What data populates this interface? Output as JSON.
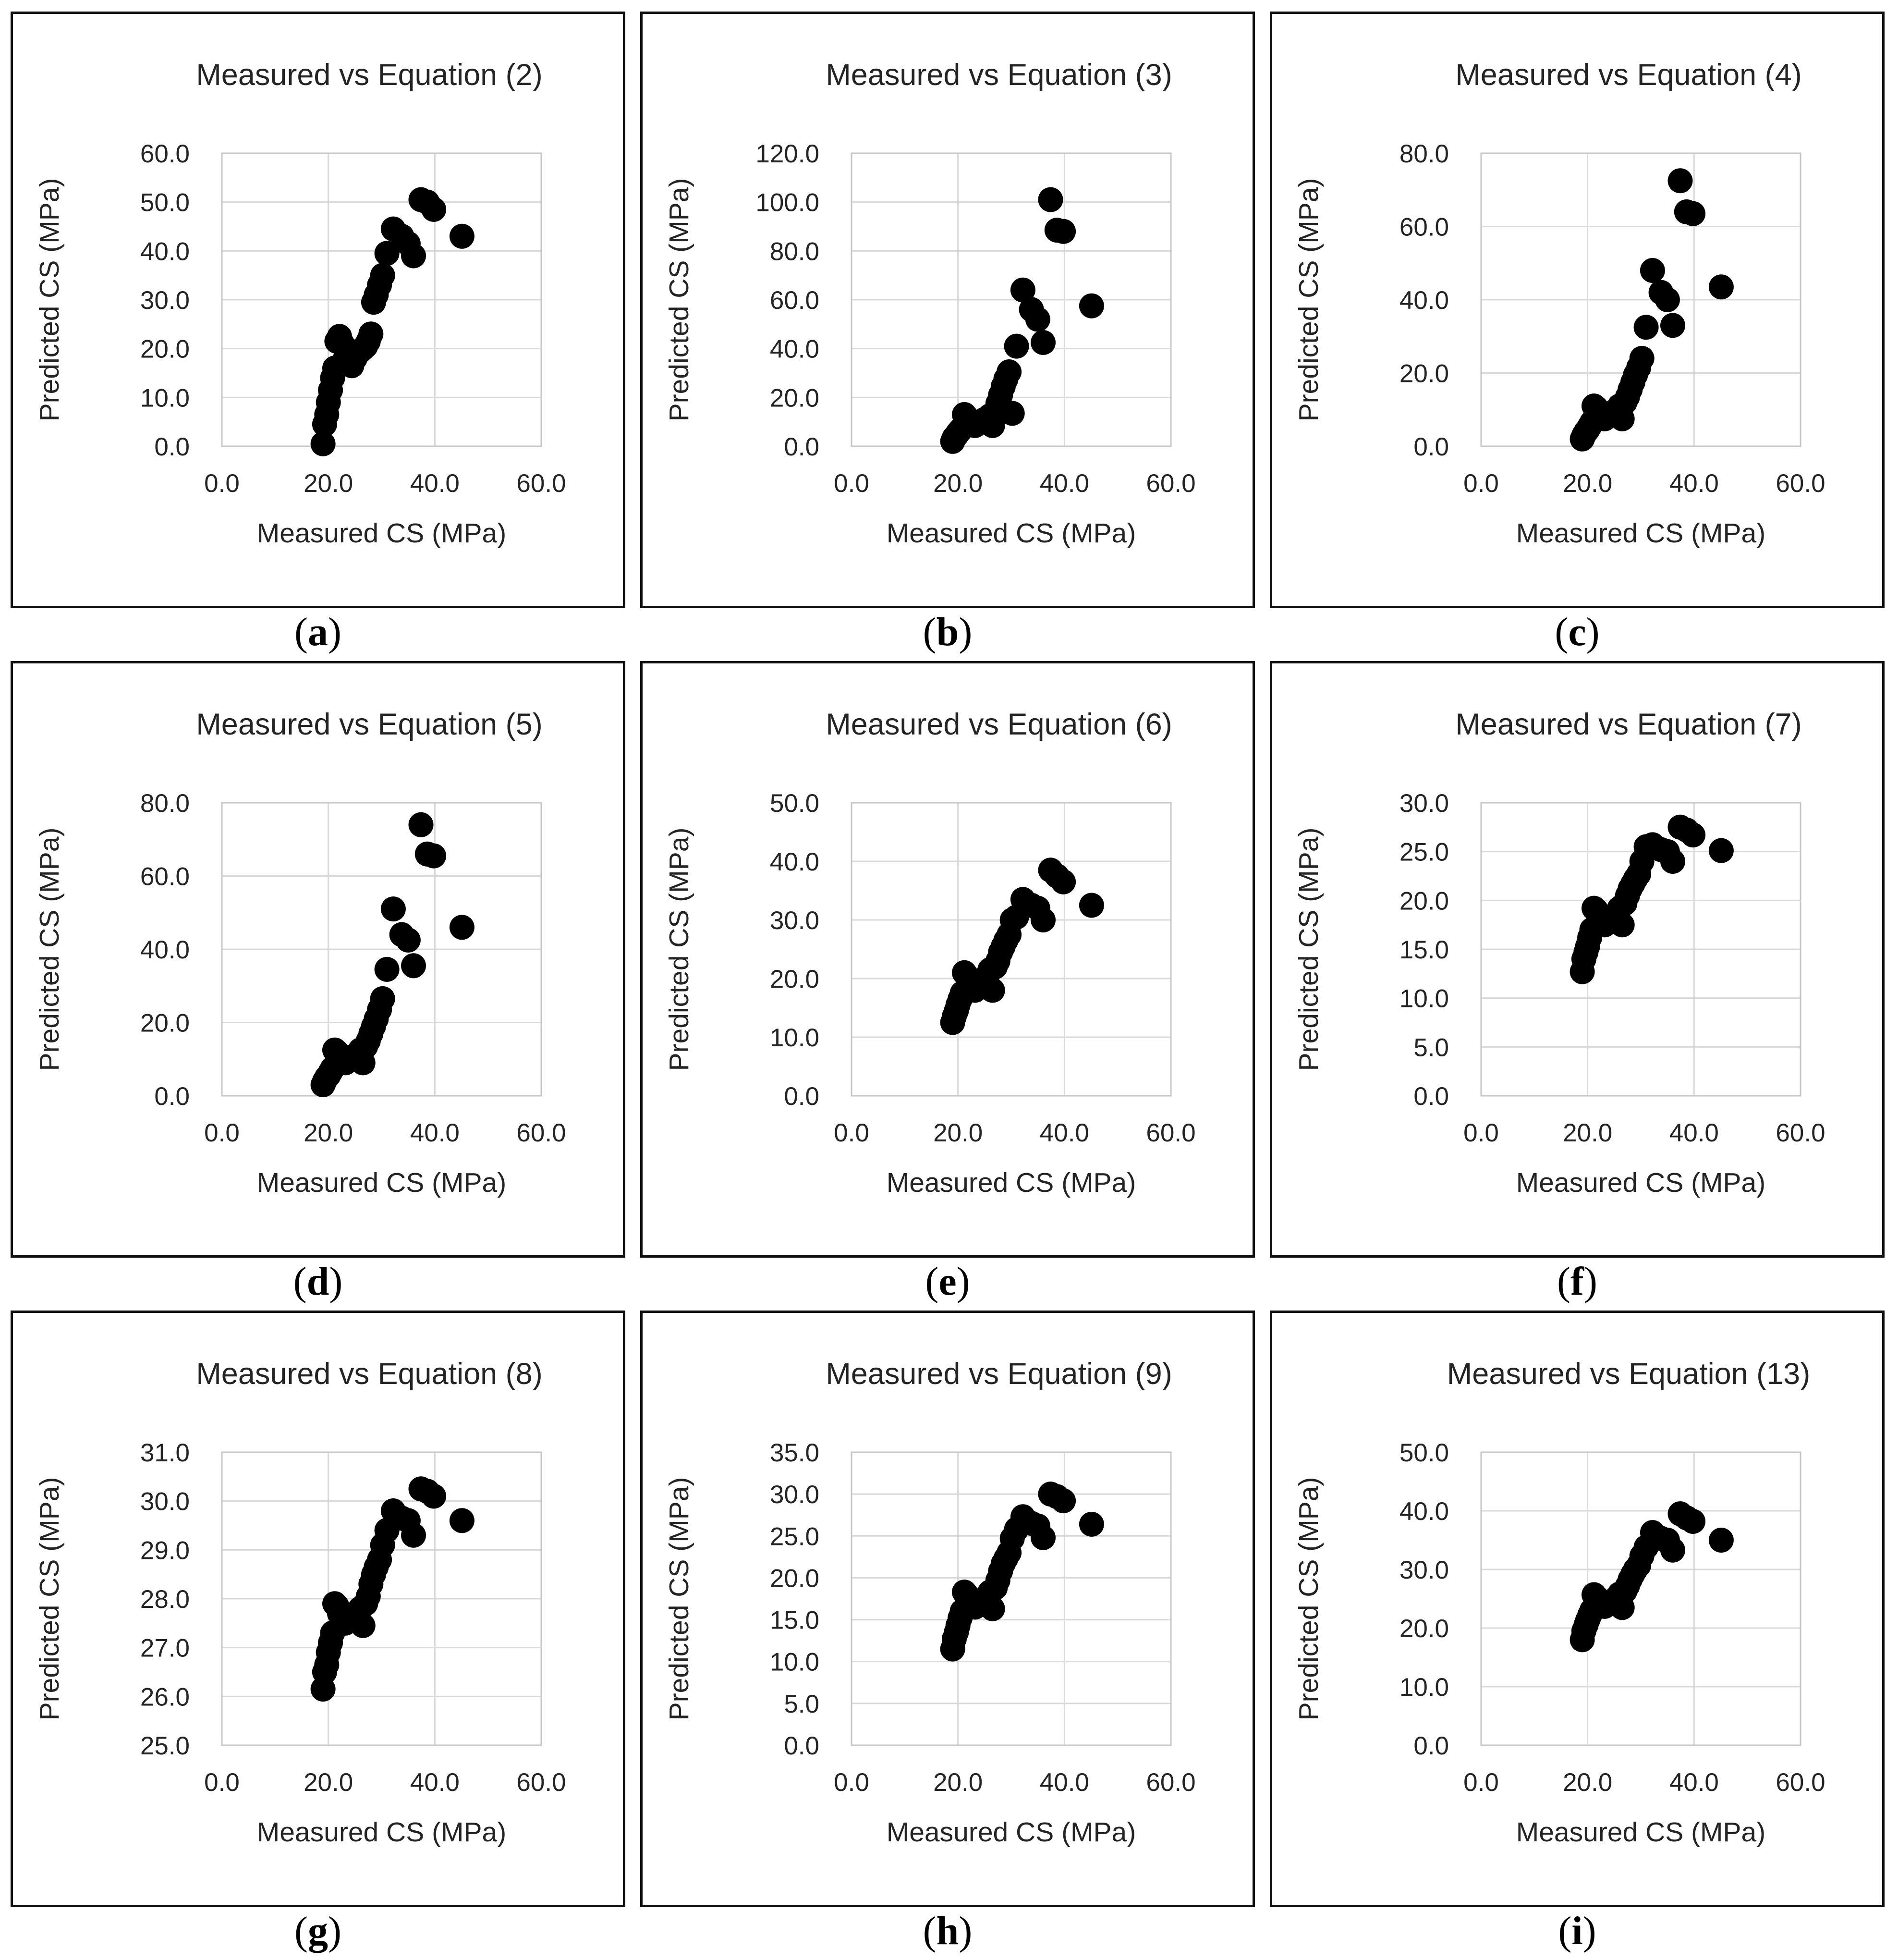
{
  "figure": {
    "shared_x_axis_label": "Measured CS (MPa)",
    "shared_y_axis_label": "Predicted CS (MPa)",
    "marker_color": "#000000",
    "gridline_color": "#d9d9d9",
    "plot_border_color": "#c6c6c6",
    "panel_border_color": "#101010"
  },
  "chart_data": [
    {
      "type": "scatter",
      "panel_letter": "a",
      "caption": "(a)",
      "title": "Measured vs Equation (2)",
      "xlabel": "Measured CS (MPa)",
      "ylabel": "Predicted CS (MPa)",
      "xlim": [
        0,
        60
      ],
      "x_tick_step": 20,
      "ylim": [
        0,
        60
      ],
      "y_tick_step": 10,
      "grid": true,
      "marker_color": "#000000",
      "points": [
        [
          19.0,
          0.5
        ],
        [
          19.3,
          4.5
        ],
        [
          19.7,
          6.5
        ],
        [
          20.0,
          9.0
        ],
        [
          20.4,
          11.5
        ],
        [
          20.8,
          14.0
        ],
        [
          21.2,
          16.0
        ],
        [
          21.6,
          21.5
        ],
        [
          22.1,
          22.5
        ],
        [
          22.6,
          21.0
        ],
        [
          23.2,
          18.0
        ],
        [
          23.8,
          17.0
        ],
        [
          24.4,
          16.5
        ],
        [
          25.0,
          18.0
        ],
        [
          25.5,
          19.0
        ],
        [
          26.0,
          19.5
        ],
        [
          26.5,
          20.0
        ],
        [
          27.0,
          20.5
        ],
        [
          27.5,
          21.5
        ],
        [
          28.0,
          23.0
        ],
        [
          28.5,
          29.5
        ],
        [
          29.0,
          31.0
        ],
        [
          29.6,
          33.0
        ],
        [
          30.2,
          35.0
        ],
        [
          31.0,
          39.5
        ],
        [
          32.2,
          44.5
        ],
        [
          33.8,
          43.0
        ],
        [
          35.0,
          41.5
        ],
        [
          36.0,
          39.0
        ],
        [
          37.4,
          50.5
        ],
        [
          38.6,
          50.0
        ],
        [
          39.8,
          48.5
        ],
        [
          45.1,
          43.0
        ]
      ]
    },
    {
      "type": "scatter",
      "panel_letter": "b",
      "caption": "(b)",
      "title": "Measured vs Equation (3)",
      "xlabel": "Measured CS (MPa)",
      "ylabel": "Predicted CS (MPa)",
      "xlim": [
        0,
        60
      ],
      "x_tick_step": 20,
      "ylim": [
        0,
        120
      ],
      "y_tick_step": 20,
      "grid": true,
      "marker_color": "#000000",
      "points": [
        [
          19.0,
          2.0
        ],
        [
          19.3,
          3.5
        ],
        [
          19.7,
          4.5
        ],
        [
          20.0,
          5.5
        ],
        [
          20.4,
          6.5
        ],
        [
          20.8,
          7.5
        ],
        [
          21.2,
          13.0
        ],
        [
          21.6,
          12.0
        ],
        [
          22.1,
          10.5
        ],
        [
          22.6,
          9.0
        ],
        [
          23.2,
          8.5
        ],
        [
          23.8,
          9.5
        ],
        [
          24.4,
          10.0
        ],
        [
          25.0,
          11.0
        ],
        [
          25.5,
          11.5
        ],
        [
          26.0,
          12.5
        ],
        [
          26.5,
          8.5
        ],
        [
          27.0,
          14.0
        ],
        [
          27.5,
          17.5
        ],
        [
          28.0,
          21.0
        ],
        [
          28.5,
          24.5
        ],
        [
          29.0,
          27.5
        ],
        [
          29.6,
          30.5
        ],
        [
          30.2,
          13.5
        ],
        [
          31.0,
          41.0
        ],
        [
          32.2,
          64.0
        ],
        [
          33.8,
          56.0
        ],
        [
          35.0,
          52.0
        ],
        [
          36.0,
          42.5
        ],
        [
          37.4,
          101.0
        ],
        [
          38.6,
          88.5
        ],
        [
          39.8,
          88.0
        ],
        [
          45.1,
          57.5
        ]
      ]
    },
    {
      "type": "scatter",
      "panel_letter": "c",
      "caption": "(c)",
      "title": "Measured vs Equation (4)",
      "xlabel": "Measured CS (MPa)",
      "ylabel": "Predicted CS (MPa)",
      "xlim": [
        0,
        60
      ],
      "x_tick_step": 20,
      "ylim": [
        0,
        80
      ],
      "y_tick_step": 20,
      "grid": true,
      "marker_color": "#000000",
      "points": [
        [
          19.0,
          2.0
        ],
        [
          19.3,
          3.0
        ],
        [
          19.7,
          4.0
        ],
        [
          20.0,
          4.5
        ],
        [
          20.4,
          5.5
        ],
        [
          20.8,
          6.5
        ],
        [
          21.2,
          11.0
        ],
        [
          21.6,
          10.5
        ],
        [
          22.1,
          9.0
        ],
        [
          22.6,
          8.0
        ],
        [
          23.2,
          7.5
        ],
        [
          23.8,
          8.5
        ],
        [
          24.4,
          9.0
        ],
        [
          25.0,
          9.5
        ],
        [
          25.5,
          10.0
        ],
        [
          26.0,
          11.0
        ],
        [
          26.5,
          7.5
        ],
        [
          27.0,
          12.0
        ],
        [
          27.5,
          13.5
        ],
        [
          28.0,
          15.5
        ],
        [
          28.5,
          17.5
        ],
        [
          29.0,
          19.5
        ],
        [
          29.6,
          21.5
        ],
        [
          30.2,
          24.0
        ],
        [
          31.0,
          32.5
        ],
        [
          32.2,
          48.0
        ],
        [
          33.8,
          42.0
        ],
        [
          35.0,
          40.0
        ],
        [
          36.0,
          33.0
        ],
        [
          37.4,
          72.5
        ],
        [
          38.6,
          64.0
        ],
        [
          39.8,
          63.5
        ],
        [
          45.1,
          43.5
        ]
      ]
    },
    {
      "type": "scatter",
      "panel_letter": "d",
      "caption": "(d)",
      "title": "Measured vs Equation (5)",
      "xlabel": "Measured CS (MPa)",
      "ylabel": "Predicted CS (MPa)",
      "xlim": [
        0,
        60
      ],
      "x_tick_step": 20,
      "ylim": [
        0,
        80
      ],
      "y_tick_step": 20,
      "grid": true,
      "marker_color": "#000000",
      "points": [
        [
          19.0,
          3.0
        ],
        [
          19.3,
          4.0
        ],
        [
          19.7,
          5.0
        ],
        [
          20.0,
          5.5
        ],
        [
          20.4,
          6.5
        ],
        [
          20.8,
          7.5
        ],
        [
          21.2,
          12.5
        ],
        [
          21.6,
          12.0
        ],
        [
          22.1,
          10.5
        ],
        [
          22.6,
          9.5
        ],
        [
          23.2,
          9.0
        ],
        [
          23.8,
          10.0
        ],
        [
          24.4,
          10.5
        ],
        [
          25.0,
          11.0
        ],
        [
          25.5,
          11.5
        ],
        [
          26.0,
          12.5
        ],
        [
          26.5,
          9.0
        ],
        [
          27.0,
          13.5
        ],
        [
          27.5,
          15.0
        ],
        [
          28.0,
          17.0
        ],
        [
          28.5,
          19.0
        ],
        [
          29.0,
          21.0
        ],
        [
          29.6,
          23.5
        ],
        [
          30.2,
          26.5
        ],
        [
          31.0,
          34.5
        ],
        [
          32.2,
          51.0
        ],
        [
          33.8,
          44.0
        ],
        [
          35.0,
          42.5
        ],
        [
          36.0,
          35.5
        ],
        [
          37.4,
          74.0
        ],
        [
          38.6,
          66.0
        ],
        [
          39.8,
          65.5
        ],
        [
          45.1,
          46.0
        ]
      ]
    },
    {
      "type": "scatter",
      "panel_letter": "e",
      "caption": "(e)",
      "title": "Measured vs Equation (6)",
      "xlabel": "Measured CS (MPa)",
      "ylabel": "Predicted CS (MPa)",
      "xlim": [
        0,
        60
      ],
      "x_tick_step": 20,
      "ylim": [
        0,
        50
      ],
      "y_tick_step": 10,
      "grid": true,
      "marker_color": "#000000",
      "points": [
        [
          19.0,
          12.5
        ],
        [
          19.3,
          13.5
        ],
        [
          19.7,
          14.5
        ],
        [
          20.0,
          15.5
        ],
        [
          20.4,
          16.5
        ],
        [
          20.8,
          17.5
        ],
        [
          21.2,
          21.0
        ],
        [
          21.6,
          20.5
        ],
        [
          22.1,
          19.5
        ],
        [
          22.6,
          18.5
        ],
        [
          23.2,
          18.0
        ],
        [
          23.8,
          19.0
        ],
        [
          24.4,
          19.5
        ],
        [
          25.0,
          20.0
        ],
        [
          25.5,
          20.5
        ],
        [
          26.0,
          21.5
        ],
        [
          26.5,
          18.0
        ],
        [
          27.0,
          22.0
        ],
        [
          27.5,
          23.0
        ],
        [
          28.0,
          24.5
        ],
        [
          28.5,
          25.5
        ],
        [
          29.0,
          26.5
        ],
        [
          29.6,
          27.5
        ],
        [
          30.2,
          30.0
        ],
        [
          31.0,
          30.5
        ],
        [
          32.2,
          33.5
        ],
        [
          33.8,
          32.5
        ],
        [
          35.0,
          32.0
        ],
        [
          36.0,
          30.0
        ],
        [
          37.4,
          38.5
        ],
        [
          38.6,
          37.5
        ],
        [
          39.8,
          36.5
        ],
        [
          45.1,
          32.5
        ]
      ]
    },
    {
      "type": "scatter",
      "panel_letter": "f",
      "caption": "(f)",
      "title": "Measured vs Equation (7)",
      "xlabel": "Measured CS (MPa)",
      "ylabel": "Predicted CS (MPa)",
      "xlim": [
        0,
        60
      ],
      "x_tick_step": 20,
      "ylim": [
        0,
        30
      ],
      "y_tick_step": 5,
      "grid": true,
      "marker_color": "#000000",
      "points": [
        [
          19.0,
          12.7
        ],
        [
          19.3,
          14.0
        ],
        [
          19.7,
          14.7
        ],
        [
          20.0,
          15.3
        ],
        [
          20.4,
          16.2
        ],
        [
          20.8,
          17.0
        ],
        [
          21.2,
          19.2
        ],
        [
          21.6,
          19.0
        ],
        [
          22.1,
          18.2
        ],
        [
          22.6,
          17.7
        ],
        [
          23.2,
          17.5
        ],
        [
          23.8,
          18.0
        ],
        [
          24.4,
          18.2
        ],
        [
          25.0,
          18.5
        ],
        [
          25.5,
          18.7
        ],
        [
          26.0,
          19.2
        ],
        [
          26.5,
          17.5
        ],
        [
          27.0,
          19.7
        ],
        [
          27.5,
          20.5
        ],
        [
          28.0,
          21.2
        ],
        [
          28.5,
          21.7
        ],
        [
          29.0,
          22.2
        ],
        [
          29.6,
          22.7
        ],
        [
          30.2,
          24.0
        ],
        [
          31.0,
          25.5
        ],
        [
          32.2,
          25.7
        ],
        [
          33.8,
          25.2
        ],
        [
          35.0,
          25.0
        ],
        [
          36.0,
          24.0
        ],
        [
          37.4,
          27.5
        ],
        [
          38.6,
          27.2
        ],
        [
          39.8,
          26.7
        ],
        [
          45.1,
          25.1
        ]
      ]
    },
    {
      "type": "scatter",
      "panel_letter": "g",
      "caption": "(g)",
      "title": "Measured vs Equation (8)",
      "xlabel": "Measured CS (MPa)",
      "ylabel": "Predicted CS (MPa)",
      "xlim": [
        0,
        60
      ],
      "x_tick_step": 20,
      "ylim": [
        25,
        31
      ],
      "y_tick_step": 1,
      "grid": true,
      "marker_color": "#000000",
      "points": [
        [
          19.0,
          26.15
        ],
        [
          19.3,
          26.5
        ],
        [
          19.7,
          26.65
        ],
        [
          20.0,
          26.9
        ],
        [
          20.4,
          27.1
        ],
        [
          20.8,
          27.3
        ],
        [
          21.2,
          27.9
        ],
        [
          21.6,
          27.85
        ],
        [
          22.1,
          27.7
        ],
        [
          22.6,
          27.6
        ],
        [
          23.2,
          27.5
        ],
        [
          23.8,
          27.55
        ],
        [
          24.4,
          27.6
        ],
        [
          25.0,
          27.65
        ],
        [
          25.5,
          27.7
        ],
        [
          26.0,
          27.8
        ],
        [
          26.5,
          27.45
        ],
        [
          27.0,
          27.9
        ],
        [
          27.5,
          28.05
        ],
        [
          28.0,
          28.3
        ],
        [
          28.5,
          28.5
        ],
        [
          29.0,
          28.65
        ],
        [
          29.6,
          28.8
        ],
        [
          30.2,
          29.1
        ],
        [
          31.0,
          29.4
        ],
        [
          32.2,
          29.8
        ],
        [
          33.8,
          29.65
        ],
        [
          35.0,
          29.6
        ],
        [
          36.0,
          29.3
        ],
        [
          37.4,
          30.25
        ],
        [
          38.6,
          30.2
        ],
        [
          39.8,
          30.1
        ],
        [
          45.1,
          29.6
        ]
      ]
    },
    {
      "type": "scatter",
      "panel_letter": "h",
      "caption": "(h)",
      "title": "Measured vs Equation (9)",
      "xlabel": "Measured CS (MPa)",
      "ylabel": "Predicted CS (MPa)",
      "xlim": [
        0,
        60
      ],
      "x_tick_step": 20,
      "ylim": [
        0,
        35
      ],
      "y_tick_step": 5,
      "grid": true,
      "marker_color": "#000000",
      "points": [
        [
          19.0,
          11.5
        ],
        [
          19.3,
          12.7
        ],
        [
          19.7,
          13.5
        ],
        [
          20.0,
          14.3
        ],
        [
          20.4,
          15.2
        ],
        [
          20.8,
          16.0
        ],
        [
          21.2,
          18.3
        ],
        [
          21.6,
          18.0
        ],
        [
          22.1,
          17.3
        ],
        [
          22.6,
          16.8
        ],
        [
          23.2,
          16.5
        ],
        [
          23.8,
          17.0
        ],
        [
          24.4,
          17.2
        ],
        [
          25.0,
          17.5
        ],
        [
          25.5,
          17.8
        ],
        [
          26.0,
          18.3
        ],
        [
          26.5,
          16.3
        ],
        [
          27.0,
          18.8
        ],
        [
          27.5,
          19.7
        ],
        [
          28.0,
          20.8
        ],
        [
          28.5,
          21.7
        ],
        [
          29.0,
          22.3
        ],
        [
          29.6,
          23.0
        ],
        [
          30.2,
          24.7
        ],
        [
          31.0,
          25.8
        ],
        [
          32.2,
          27.3
        ],
        [
          33.8,
          26.5
        ],
        [
          35.0,
          26.2
        ],
        [
          36.0,
          24.8
        ],
        [
          37.4,
          30.0
        ],
        [
          38.6,
          29.7
        ],
        [
          39.8,
          29.2
        ],
        [
          45.1,
          26.4
        ]
      ]
    },
    {
      "type": "scatter",
      "panel_letter": "i",
      "caption": "(i)",
      "title": "Measured vs Equation (13)",
      "xlabel": "Measured CS (MPa)",
      "ylabel": "Predicted CS (MPa)",
      "xlim": [
        0,
        60
      ],
      "x_tick_step": 20,
      "ylim": [
        0,
        50
      ],
      "y_tick_step": 10,
      "grid": true,
      "marker_color": "#000000",
      "points": [
        [
          19.0,
          18.0
        ],
        [
          19.3,
          19.5
        ],
        [
          19.7,
          20.5
        ],
        [
          20.0,
          21.3
        ],
        [
          20.4,
          22.2
        ],
        [
          20.8,
          23.0
        ],
        [
          21.2,
          25.7
        ],
        [
          21.6,
          25.3
        ],
        [
          22.1,
          24.5
        ],
        [
          22.6,
          24.0
        ],
        [
          23.2,
          23.7
        ],
        [
          23.8,
          24.2
        ],
        [
          24.4,
          24.5
        ],
        [
          25.0,
          24.8
        ],
        [
          25.5,
          25.2
        ],
        [
          26.0,
          25.8
        ],
        [
          26.5,
          23.5
        ],
        [
          27.0,
          26.3
        ],
        [
          27.5,
          27.2
        ],
        [
          28.0,
          28.3
        ],
        [
          28.5,
          29.2
        ],
        [
          29.0,
          30.0
        ],
        [
          29.6,
          30.7
        ],
        [
          30.2,
          32.3
        ],
        [
          31.0,
          33.8
        ],
        [
          32.2,
          36.3
        ],
        [
          33.8,
          35.3
        ],
        [
          35.0,
          35.0
        ],
        [
          36.0,
          33.3
        ],
        [
          37.4,
          39.5
        ],
        [
          38.6,
          38.8
        ],
        [
          39.8,
          38.2
        ],
        [
          45.1,
          35.0
        ]
      ]
    }
  ]
}
